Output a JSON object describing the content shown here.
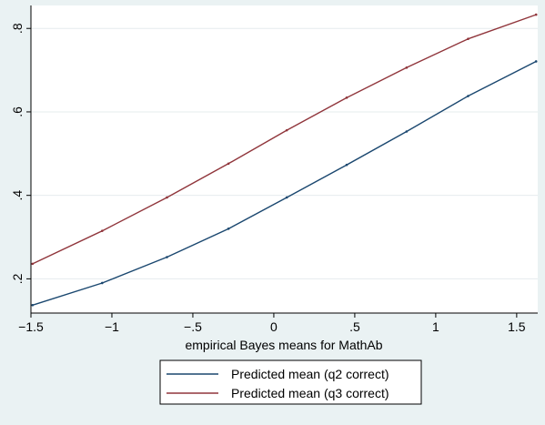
{
  "chart_data": {
    "type": "line",
    "xlabel": "empirical Bayes means for MathAb",
    "ylabel": "",
    "xlim": [
      -1.5,
      1.63
    ],
    "ylim": [
      0.118,
      0.855
    ],
    "xticks": [
      -1.5,
      -1,
      -0.5,
      0,
      0.5,
      1,
      1.5
    ],
    "xtick_labels": [
      "−1.5",
      "−1",
      "−.5",
      "0",
      ".5",
      "1",
      "1.5"
    ],
    "yticks": [
      0.2,
      0.4,
      0.6,
      0.8
    ],
    "ytick_labels": [
      ".2",
      ".4",
      ".6",
      ".8"
    ],
    "grid": "horizontal",
    "legend_position": "bottom",
    "series": [
      {
        "name": "Predicted mean (q2 correct)",
        "color": "#1a476f",
        "x": [
          -1.49,
          -1.06,
          -0.66,
          -0.28,
          0.08,
          0.45,
          0.82,
          1.2,
          1.62
        ],
        "y": [
          0.137,
          0.19,
          0.252,
          0.32,
          0.395,
          0.473,
          0.553,
          0.638,
          0.721
        ]
      },
      {
        "name": "Predicted mean (q3 correct)",
        "color": "#90353b",
        "x": [
          -1.49,
          -1.06,
          -0.66,
          -0.28,
          0.08,
          0.45,
          0.82,
          1.2,
          1.62
        ],
        "y": [
          0.236,
          0.315,
          0.395,
          0.476,
          0.556,
          0.634,
          0.706,
          0.775,
          0.833
        ]
      }
    ]
  }
}
